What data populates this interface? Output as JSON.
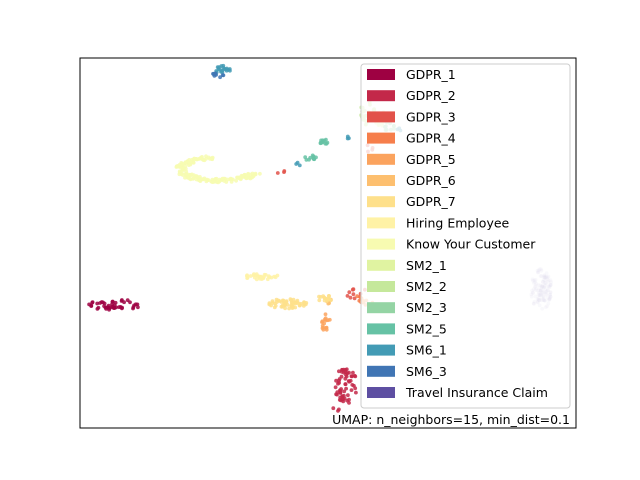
{
  "chart_data": {
    "type": "scatter",
    "title": "",
    "xlabel": "",
    "ylabel": "",
    "xlim": [
      0,
      100
    ],
    "ylim": [
      0,
      100
    ],
    "grid": false,
    "ticks": false,
    "legend_placement": "upper-right",
    "annotation": "UMAP: n_neighbors=15, min_dist=0.1",
    "series": [
      {
        "name": "GDPR_1",
        "color": "#9e0142",
        "clusters": [
          {
            "cx": 7.2,
            "cy": 33.3,
            "rx": 5.5,
            "ry": 1.5,
            "n": 45,
            "shape": "blob"
          }
        ]
      },
      {
        "name": "GDPR_2",
        "color": "#c32849",
        "clusters": [
          {
            "cx": 53.6,
            "cy": 11.5,
            "rx": 2.3,
            "ry": 4.9,
            "n": 60,
            "shape": "blob"
          },
          {
            "cx": 51.7,
            "cy": 4.9,
            "rx": 0.8,
            "ry": 0.8,
            "n": 3,
            "shape": "blob"
          }
        ]
      },
      {
        "name": "GDPR_3",
        "color": "#e2524a",
        "clusters": [
          {
            "cx": 56.0,
            "cy": 36.3,
            "rx": 3.2,
            "ry": 1.3,
            "n": 10,
            "shape": "blob"
          },
          {
            "cx": 58.2,
            "cy": 75.6,
            "rx": 1.0,
            "ry": 0.9,
            "n": 4,
            "shape": "blob"
          },
          {
            "cx": 41.0,
            "cy": 69.0,
            "rx": 1.2,
            "ry": 0.5,
            "n": 3,
            "shape": "blob"
          }
        ]
      },
      {
        "name": "GDPR_4",
        "color": "#f67e4b",
        "clusters": [
          {
            "cx": 56.5,
            "cy": 34.8,
            "rx": 1.5,
            "ry": 1.0,
            "n": 8,
            "shape": "blob"
          }
        ]
      },
      {
        "name": "GDPR_5",
        "color": "#fba35e",
        "clusters": [
          {
            "cx": 49.5,
            "cy": 28.6,
            "rx": 0.9,
            "ry": 2.4,
            "n": 16,
            "shape": "blob"
          },
          {
            "cx": 57.9,
            "cy": 34.0,
            "rx": 1.3,
            "ry": 0.9,
            "n": 6,
            "shape": "blob"
          }
        ]
      },
      {
        "name": "GDPR_6",
        "color": "#fdbf6f",
        "clusters": [
          {
            "cx": 49.8,
            "cy": 34.2,
            "rx": 1.0,
            "ry": 0.8,
            "n": 5,
            "shape": "blob"
          }
        ]
      },
      {
        "name": "GDPR_7",
        "color": "#fee08b",
        "clusters": [
          {
            "cx": 42.0,
            "cy": 33.6,
            "rx": 4.0,
            "ry": 1.4,
            "n": 55,
            "shape": "blob"
          },
          {
            "cx": 49.3,
            "cy": 35.0,
            "rx": 1.5,
            "ry": 1.0,
            "n": 15,
            "shape": "blob"
          }
        ]
      },
      {
        "name": "Hiring Employee",
        "color": "#fff2a6",
        "clusters": [
          {
            "cx": 36.8,
            "cy": 40.9,
            "rx": 3.8,
            "ry": 0.8,
            "n": 30,
            "shape": "blob"
          }
        ]
      },
      {
        "name": "Know Your Customer",
        "color": "#f7fbb1",
        "clusters": [
          {
            "cx": 28.0,
            "cy": 70.0,
            "rx": 8.5,
            "ry": 3.5,
            "n": 170,
            "shape": "hook"
          }
        ]
      },
      {
        "name": "SM2_1",
        "color": "#e0f3a1",
        "clusters": [
          {
            "cx": 61.0,
            "cy": 83.5,
            "rx": 1.6,
            "ry": 2.0,
            "n": 25,
            "shape": "blob"
          }
        ]
      },
      {
        "name": "SM2_2",
        "color": "#c5e89b",
        "clusters": [
          {
            "cx": 58.0,
            "cy": 85.0,
            "rx": 1.6,
            "ry": 3.2,
            "n": 30,
            "shape": "blob"
          }
        ]
      },
      {
        "name": "SM2_3",
        "color": "#94d4a4",
        "clusters": [
          {
            "cx": 62.3,
            "cy": 81.5,
            "rx": 1.3,
            "ry": 1.4,
            "n": 10,
            "shape": "blob"
          }
        ]
      },
      {
        "name": "SM2_5",
        "color": "#66c2a5",
        "clusters": [
          {
            "cx": 49.3,
            "cy": 77.3,
            "rx": 1.1,
            "ry": 0.7,
            "n": 12,
            "shape": "blob"
          },
          {
            "cx": 46.4,
            "cy": 73.0,
            "rx": 1.3,
            "ry": 0.8,
            "n": 12,
            "shape": "blob"
          }
        ]
      },
      {
        "name": "SM6_1",
        "color": "#439bb5",
        "clusters": [
          {
            "cx": 28.8,
            "cy": 96.8,
            "rx": 1.5,
            "ry": 1.2,
            "n": 20,
            "shape": "blob"
          },
          {
            "cx": 44.0,
            "cy": 71.2,
            "rx": 0.6,
            "ry": 0.6,
            "n": 3,
            "shape": "blob"
          },
          {
            "cx": 53.9,
            "cy": 78.6,
            "rx": 0.6,
            "ry": 0.6,
            "n": 3,
            "shape": "blob"
          },
          {
            "cx": 64.5,
            "cy": 80.5,
            "rx": 0.6,
            "ry": 0.6,
            "n": 3,
            "shape": "blob"
          }
        ]
      },
      {
        "name": "SM6_3",
        "color": "#4075b4",
        "clusters": [
          {
            "cx": 27.8,
            "cy": 95.5,
            "rx": 1.3,
            "ry": 0.8,
            "n": 10,
            "shape": "blob"
          }
        ]
      },
      {
        "name": "Travel Insurance Claim",
        "color": "#5e4fa2",
        "clusters": [
          {
            "cx": 93.0,
            "cy": 37.5,
            "rx": 2.2,
            "ry": 5.5,
            "n": 120,
            "shape": "blob",
            "alpha": 0.18
          }
        ]
      }
    ]
  }
}
